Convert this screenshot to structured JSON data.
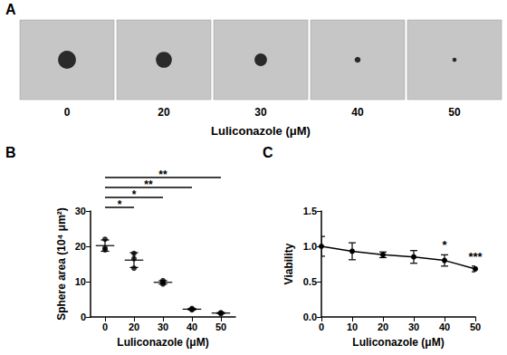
{
  "chart_data": [
    {
      "panel": "A",
      "type": "images",
      "categories": [
        "0",
        "20",
        "30",
        "40",
        "50"
      ],
      "xlabel": "Luliconazole (μM)"
    },
    {
      "panel": "B",
      "type": "scatter",
      "categories": [
        "0",
        "20",
        "30",
        "40",
        "50"
      ],
      "values": [
        [
          22.0,
          19.5,
          19.0
        ],
        [
          18.0,
          16.5,
          13.8
        ],
        [
          10.3,
          9.8,
          9.3
        ],
        [
          2.4,
          2.0,
          2.2
        ],
        [
          1.2,
          0.9,
          1.1
        ]
      ],
      "mean": [
        20.2,
        16.1,
        9.8,
        2.2,
        1.1
      ],
      "sd": [
        1.6,
        2.1,
        0.5,
        0.2,
        0.15
      ],
      "xlabel": "Luliconazole (μM)",
      "ylabel": "Sphere area (10⁴ μm²)",
      "ylim": [
        0,
        30
      ],
      "yticks": [
        0,
        10,
        20,
        30
      ],
      "color": "#000000",
      "marker": "circle",
      "comparisons": [
        {
          "from": "0",
          "to": "20",
          "label": "*"
        },
        {
          "from": "0",
          "to": "30",
          "label": "*"
        },
        {
          "from": "0",
          "to": "40",
          "label": "**"
        },
        {
          "from": "0",
          "to": "50",
          "label": "**"
        }
      ]
    },
    {
      "panel": "C",
      "type": "line",
      "x": [
        0,
        10,
        20,
        30,
        40,
        50
      ],
      "values": [
        1.0,
        0.93,
        0.88,
        0.85,
        0.8,
        0.68
      ],
      "error": [
        0.14,
        0.12,
        0.04,
        0.09,
        0.08,
        0.04
      ],
      "xlabel": "Luliconazole (μM)",
      "ylabel": "Viability",
      "xlim": [
        0,
        50
      ],
      "xticks": [
        0,
        10,
        20,
        30,
        40,
        50
      ],
      "ylim": [
        0,
        1.5
      ],
      "yticks": [
        {
          "value": 0,
          "label": "0.0"
        },
        {
          "value": 0.5,
          "label": "0.5"
        },
        {
          "value": 1,
          "label": "1.0"
        },
        {
          "value": 1.5,
          "label": "1.5"
        }
      ],
      "color": "#000000",
      "marker": "circle",
      "annotations": [
        {
          "x": 40,
          "label": "*"
        },
        {
          "x": 50,
          "label": "***"
        }
      ]
    }
  ]
}
